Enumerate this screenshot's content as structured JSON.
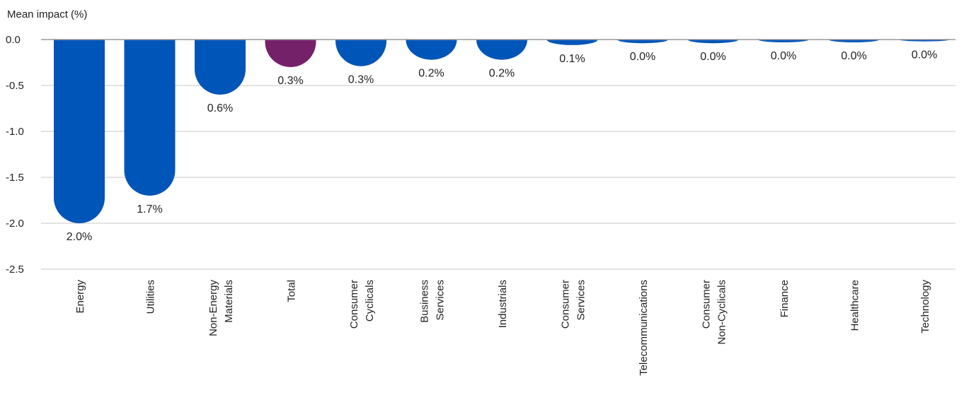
{
  "chart_data": {
    "type": "bar",
    "ylabel": "Mean impact (%)",
    "ylim": [
      -2.5,
      0
    ],
    "yticks": [
      "0.0",
      "-0.5",
      "-1.0",
      "-1.5",
      "-2.0",
      "-2.5"
    ],
    "ytick_values": [
      0,
      -0.5,
      -1.0,
      -1.5,
      -2.0,
      -2.5
    ],
    "grid": true,
    "colors": {
      "default": "#0055B8",
      "highlight": "#74216A",
      "grid": "#c8c8c8",
      "axis": "#999999"
    },
    "highlight_category": "Total",
    "categories": [
      [
        "Energy"
      ],
      [
        "Utilities"
      ],
      [
        "Non-Energy",
        "Materials"
      ],
      [
        "Total"
      ],
      [
        "Consumer",
        "Cyclicals"
      ],
      [
        "Business",
        "Services"
      ],
      [
        "Industrials"
      ],
      [
        "Consumer",
        "Services"
      ],
      [
        "Telecommunications"
      ],
      [
        "Consumer",
        "Non-Cyclicals"
      ],
      [
        "Finance"
      ],
      [
        "Healthcare"
      ],
      [
        "Technology"
      ]
    ],
    "values": [
      -2.0,
      -1.7,
      -0.6,
      -0.3,
      -0.29,
      -0.22,
      -0.22,
      -0.06,
      -0.04,
      -0.04,
      -0.03,
      -0.03,
      -0.02
    ],
    "data_labels": [
      "2.0%",
      "1.7%",
      "0.6%",
      "0.3%",
      "0.3%",
      "0.2%",
      "0.2%",
      "0.1%",
      "0.0%",
      "0.0%",
      "0.0%",
      "0.0%",
      "0.0%"
    ]
  }
}
